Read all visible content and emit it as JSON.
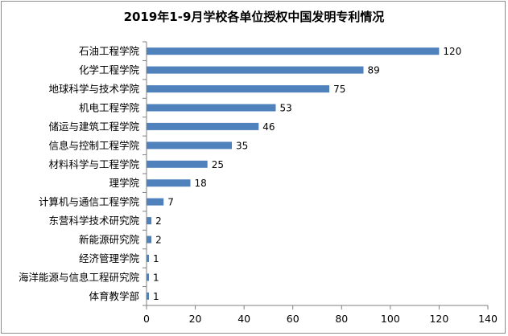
{
  "chart_data": {
    "type": "bar",
    "orientation": "horizontal",
    "title": "2019年1-9月学校各单位授权中国发明专利情况",
    "xlabel": "",
    "ylabel": "",
    "xlim": [
      0,
      140
    ],
    "x_ticks": [
      "0",
      "20",
      "40",
      "60",
      "80",
      "100",
      "120",
      "140"
    ],
    "grid": false,
    "legend": "none",
    "bar_color": "#4f81bd",
    "categories": [
      "石油工程学院",
      "化学工程学院",
      "地球科学与技术学院",
      "机电工程学院",
      "储运与建筑工程学院",
      "信息与控制工程学院",
      "材料科学与工程学院",
      "理学院",
      "计算机与通信工程学院",
      "东营科学技术研究院",
      "新能源研究院",
      "经济管理学院",
      "海洋能源与信息工程研究院",
      "体育教学部"
    ],
    "values": [
      120,
      89,
      75,
      53,
      46,
      35,
      25,
      18,
      7,
      2,
      2,
      1,
      1,
      1
    ],
    "data_labels": [
      "120",
      "89",
      "75",
      "53",
      "46",
      "35",
      "25",
      "18",
      "7",
      "2",
      "2",
      "1",
      "1",
      "1"
    ]
  }
}
